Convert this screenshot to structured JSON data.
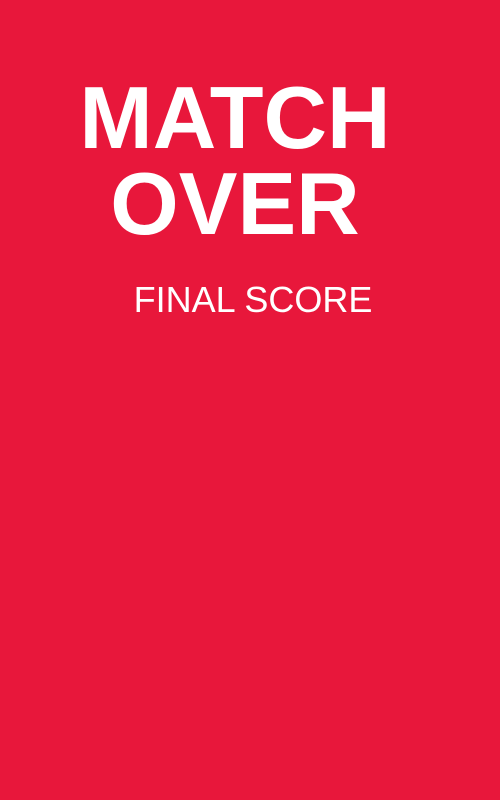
{
  "screen": {
    "title_line_1": "MATCH",
    "title_line_2": "OVER",
    "subtitle": "FINAL SCORE"
  },
  "colors": {
    "background": "#E8173B",
    "text": "#FFFFFF"
  }
}
